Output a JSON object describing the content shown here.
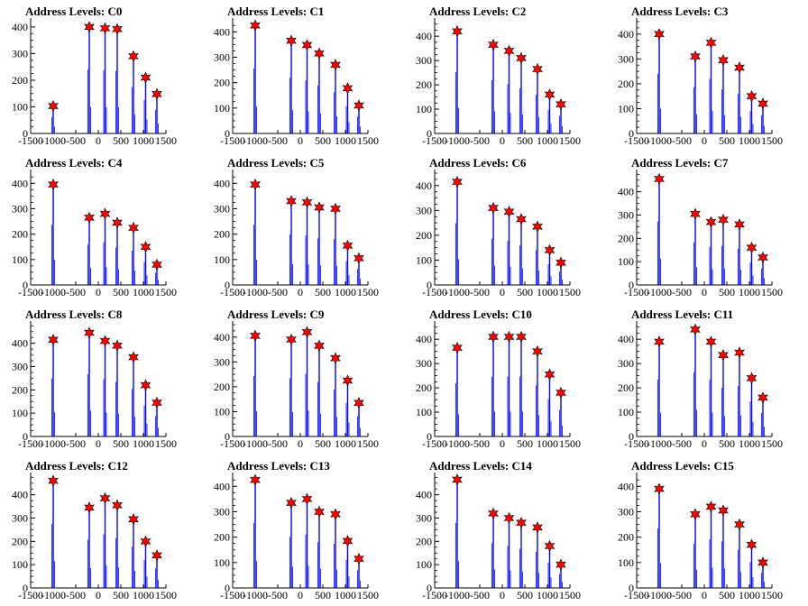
{
  "figure": {
    "xlim": [
      -1500,
      1500
    ],
    "ylim_default": [
      0,
      450
    ],
    "x_ticks": [
      "-1500",
      "-1000",
      "-500",
      "0",
      "500",
      "1000",
      "1500"
    ],
    "colors": {
      "peak_line": "#0000ff",
      "marker_fill": "#ff0000",
      "marker_edge": "#000000",
      "axis": "#000000"
    }
  },
  "chart_data": [
    {
      "type": "bar",
      "title": "Address Levels: C0",
      "ylim": [
        0,
        420
      ],
      "yticks": [
        0,
        100,
        200,
        300,
        400
      ],
      "peaks": [
        {
          "x": -1000,
          "y": 103
        },
        {
          "x": -200,
          "y": 400
        },
        {
          "x": 150,
          "y": 395
        },
        {
          "x": 420,
          "y": 392
        },
        {
          "x": 780,
          "y": 290
        },
        {
          "x": 1050,
          "y": 210
        },
        {
          "x": 1300,
          "y": 148
        }
      ]
    },
    {
      "type": "bar",
      "title": "Address Levels: C1",
      "ylim": [
        0,
        440
      ],
      "yticks": [
        0,
        100,
        200,
        300,
        400
      ],
      "peaks": [
        {
          "x": -1000,
          "y": 425
        },
        {
          "x": -200,
          "y": 365
        },
        {
          "x": 150,
          "y": 348
        },
        {
          "x": 420,
          "y": 315
        },
        {
          "x": 780,
          "y": 270
        },
        {
          "x": 1050,
          "y": 178
        },
        {
          "x": 1300,
          "y": 110
        }
      ]
    },
    {
      "type": "bar",
      "title": "Address Levels: C2",
      "ylim": [
        0,
        460
      ],
      "yticks": [
        0,
        100,
        200,
        300,
        400
      ],
      "peaks": [
        {
          "x": -1000,
          "y": 420
        },
        {
          "x": -200,
          "y": 365
        },
        {
          "x": 150,
          "y": 340
        },
        {
          "x": 420,
          "y": 310
        },
        {
          "x": 780,
          "y": 265
        },
        {
          "x": 1050,
          "y": 160
        },
        {
          "x": 1300,
          "y": 120
        }
      ]
    },
    {
      "type": "bar",
      "title": "Address Levels: C3",
      "ylim": [
        0,
        450
      ],
      "yticks": [
        0,
        100,
        200,
        300,
        400
      ],
      "peaks": [
        {
          "x": -1000,
          "y": 400
        },
        {
          "x": -200,
          "y": 310
        },
        {
          "x": 150,
          "y": 365
        },
        {
          "x": 420,
          "y": 295
        },
        {
          "x": 780,
          "y": 265
        },
        {
          "x": 1050,
          "y": 150
        },
        {
          "x": 1300,
          "y": 120
        }
      ]
    },
    {
      "type": "bar",
      "title": "Address Levels: C4",
      "ylim": [
        0,
        440
      ],
      "yticks": [
        0,
        100,
        200,
        300,
        400
      ],
      "peaks": [
        {
          "x": -1000,
          "y": 395
        },
        {
          "x": -200,
          "y": 265
        },
        {
          "x": 150,
          "y": 280
        },
        {
          "x": 420,
          "y": 245
        },
        {
          "x": 780,
          "y": 225
        },
        {
          "x": 1050,
          "y": 150
        },
        {
          "x": 1300,
          "y": 80
        }
      ]
    },
    {
      "type": "bar",
      "title": "Address Levels: C5",
      "ylim": [
        0,
        440
      ],
      "yticks": [
        0,
        100,
        200,
        300,
        400
      ],
      "peaks": [
        {
          "x": -1000,
          "y": 395
        },
        {
          "x": -200,
          "y": 330
        },
        {
          "x": 150,
          "y": 325
        },
        {
          "x": 420,
          "y": 305
        },
        {
          "x": 780,
          "y": 300
        },
        {
          "x": 1050,
          "y": 155
        },
        {
          "x": 1300,
          "y": 105
        }
      ]
    },
    {
      "type": "bar",
      "title": "Address Levels: C6",
      "ylim": [
        0,
        450
      ],
      "yticks": [
        0,
        100,
        200,
        300,
        400
      ],
      "peaks": [
        {
          "x": -1000,
          "y": 415
        },
        {
          "x": -200,
          "y": 310
        },
        {
          "x": 150,
          "y": 295
        },
        {
          "x": 420,
          "y": 265
        },
        {
          "x": 780,
          "y": 235
        },
        {
          "x": 1050,
          "y": 140
        },
        {
          "x": 1300,
          "y": 90
        }
      ]
    },
    {
      "type": "bar",
      "title": "Address Levels: C7",
      "ylim": [
        0,
        480
      ],
      "yticks": [
        0,
        100,
        200,
        300,
        400
      ],
      "peaks": [
        {
          "x": -1000,
          "y": 455
        },
        {
          "x": -200,
          "y": 305
        },
        {
          "x": 150,
          "y": 270
        },
        {
          "x": 420,
          "y": 280
        },
        {
          "x": 780,
          "y": 260
        },
        {
          "x": 1050,
          "y": 160
        },
        {
          "x": 1300,
          "y": 118
        }
      ]
    },
    {
      "type": "bar",
      "title": "Address Levels: C8",
      "ylim": [
        0,
        480
      ],
      "yticks": [
        0,
        100,
        200,
        300,
        400
      ],
      "peaks": [
        {
          "x": -1000,
          "y": 415
        },
        {
          "x": -200,
          "y": 445
        },
        {
          "x": 150,
          "y": 410
        },
        {
          "x": 420,
          "y": 390
        },
        {
          "x": 780,
          "y": 340
        },
        {
          "x": 1050,
          "y": 220
        },
        {
          "x": 1300,
          "y": 145
        }
      ]
    },
    {
      "type": "bar",
      "title": "Address Levels: C9",
      "ylim": [
        0,
        450
      ],
      "yticks": [
        0,
        100,
        200,
        300,
        400
      ],
      "peaks": [
        {
          "x": -1000,
          "y": 405
        },
        {
          "x": -200,
          "y": 390
        },
        {
          "x": 150,
          "y": 420
        },
        {
          "x": 420,
          "y": 365
        },
        {
          "x": 780,
          "y": 315
        },
        {
          "x": 1050,
          "y": 225
        },
        {
          "x": 1300,
          "y": 135
        }
      ]
    },
    {
      "type": "bar",
      "title": "Address Levels: C10",
      "ylim": [
        0,
        460
      ],
      "yticks": [
        0,
        100,
        200,
        300,
        400
      ],
      "peaks": [
        {
          "x": -1000,
          "y": 365
        },
        {
          "x": -200,
          "y": 410
        },
        {
          "x": 150,
          "y": 410
        },
        {
          "x": 420,
          "y": 410
        },
        {
          "x": 780,
          "y": 350
        },
        {
          "x": 1050,
          "y": 255
        },
        {
          "x": 1300,
          "y": 180
        }
      ]
    },
    {
      "type": "bar",
      "title": "Address Levels: C11",
      "ylim": [
        0,
        460
      ],
      "yticks": [
        0,
        100,
        200,
        300,
        400
      ],
      "peaks": [
        {
          "x": -1000,
          "y": 390
        },
        {
          "x": -200,
          "y": 440
        },
        {
          "x": 150,
          "y": 390
        },
        {
          "x": 420,
          "y": 335
        },
        {
          "x": 780,
          "y": 345
        },
        {
          "x": 1050,
          "y": 240
        },
        {
          "x": 1300,
          "y": 160
        }
      ]
    },
    {
      "type": "bar",
      "title": "Address Levels: C12",
      "ylim": [
        0,
        480
      ],
      "yticks": [
        0,
        100,
        200,
        300,
        400
      ],
      "peaks": [
        {
          "x": -1000,
          "y": 460
        },
        {
          "x": -200,
          "y": 345
        },
        {
          "x": 150,
          "y": 385
        },
        {
          "x": 420,
          "y": 355
        },
        {
          "x": 780,
          "y": 295
        },
        {
          "x": 1050,
          "y": 200
        },
        {
          "x": 1300,
          "y": 140
        }
      ]
    },
    {
      "type": "bar",
      "title": "Address Levels: C13",
      "ylim": [
        0,
        440
      ],
      "yticks": [
        0,
        100,
        200,
        300,
        400
      ],
      "peaks": [
        {
          "x": -1000,
          "y": 425
        },
        {
          "x": -200,
          "y": 335
        },
        {
          "x": 150,
          "y": 350
        },
        {
          "x": 420,
          "y": 300
        },
        {
          "x": 780,
          "y": 290
        },
        {
          "x": 1050,
          "y": 185
        },
        {
          "x": 1300,
          "y": 115
        }
      ]
    },
    {
      "type": "bar",
      "title": "Address Levels: C14",
      "ylim": [
        0,
        480
      ],
      "yticks": [
        0,
        100,
        200,
        300,
        400
      ],
      "peaks": [
        {
          "x": -1000,
          "y": 465
        },
        {
          "x": -200,
          "y": 320
        },
        {
          "x": 150,
          "y": 300
        },
        {
          "x": 420,
          "y": 280
        },
        {
          "x": 780,
          "y": 260
        },
        {
          "x": 1050,
          "y": 180
        },
        {
          "x": 1300,
          "y": 100
        }
      ]
    },
    {
      "type": "bar",
      "title": "Address Levels: C15",
      "ylim": [
        0,
        440
      ],
      "yticks": [
        0,
        100,
        200,
        300,
        400
      ],
      "peaks": [
        {
          "x": -1000,
          "y": 390
        },
        {
          "x": -200,
          "y": 290
        },
        {
          "x": 150,
          "y": 320
        },
        {
          "x": 420,
          "y": 305
        },
        {
          "x": 780,
          "y": 250
        },
        {
          "x": 1050,
          "y": 170
        },
        {
          "x": 1300,
          "y": 100
        }
      ]
    }
  ]
}
